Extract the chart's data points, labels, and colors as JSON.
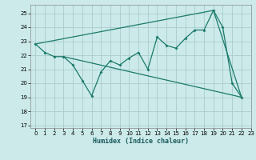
{
  "xlabel": "Humidex (Indice chaleur)",
  "background_color": "#cceaea",
  "grid_color": "#aacccc",
  "line_color": "#1a7a6a",
  "series_main": {
    "x": [
      0,
      1,
      2,
      3,
      4,
      5,
      6,
      7,
      8,
      9,
      10,
      11,
      12,
      13,
      14,
      15,
      16,
      17,
      18,
      19,
      20,
      21,
      22
    ],
    "y": [
      22.8,
      22.2,
      21.9,
      21.9,
      21.3,
      20.2,
      19.1,
      20.8,
      21.6,
      21.3,
      21.8,
      22.2,
      21.0,
      23.3,
      22.7,
      22.5,
      23.2,
      23.8,
      23.8,
      25.2,
      24.0,
      20.0,
      19.0
    ]
  },
  "series_lower": {
    "x": [
      3,
      22
    ],
    "y": [
      21.9,
      19.0
    ]
  },
  "series_upper": {
    "x": [
      0,
      19,
      22
    ],
    "y": [
      22.8,
      25.2,
      19.0
    ]
  },
  "ylim": [
    16.8,
    25.6
  ],
  "xlim": [
    -0.5,
    23.0
  ],
  "yticks": [
    17,
    18,
    19,
    20,
    21,
    22,
    23,
    24,
    25
  ],
  "xticks": [
    0,
    1,
    2,
    3,
    4,
    5,
    6,
    7,
    8,
    9,
    10,
    11,
    12,
    13,
    14,
    15,
    16,
    17,
    18,
    19,
    20,
    21,
    22,
    23
  ]
}
